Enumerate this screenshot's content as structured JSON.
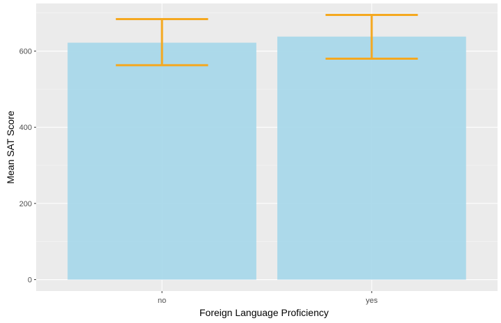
{
  "chart_data": {
    "type": "bar",
    "categories": [
      "no",
      "yes"
    ],
    "values": [
      622,
      638
    ],
    "error_bars": [
      {
        "lower": 563,
        "upper": 684
      },
      {
        "lower": 580,
        "upper": 695
      }
    ],
    "title": "",
    "xlabel": "Foreign Language Proficiency",
    "ylabel": "Mean SAT Score",
    "ylim": [
      -30,
      725
    ],
    "yticks": [
      0,
      200,
      400,
      600
    ],
    "ytick_labels": [
      "0",
      "200",
      "400",
      "600"
    ],
    "grid": true,
    "legend": "none"
  },
  "colors": {
    "bar_fill": "#a9d8ea",
    "error_bar": "#f5a81f",
    "panel_background": "#ebebeb",
    "grid_major": "#ffffff",
    "grid_minor": "#f5f5f5"
  }
}
